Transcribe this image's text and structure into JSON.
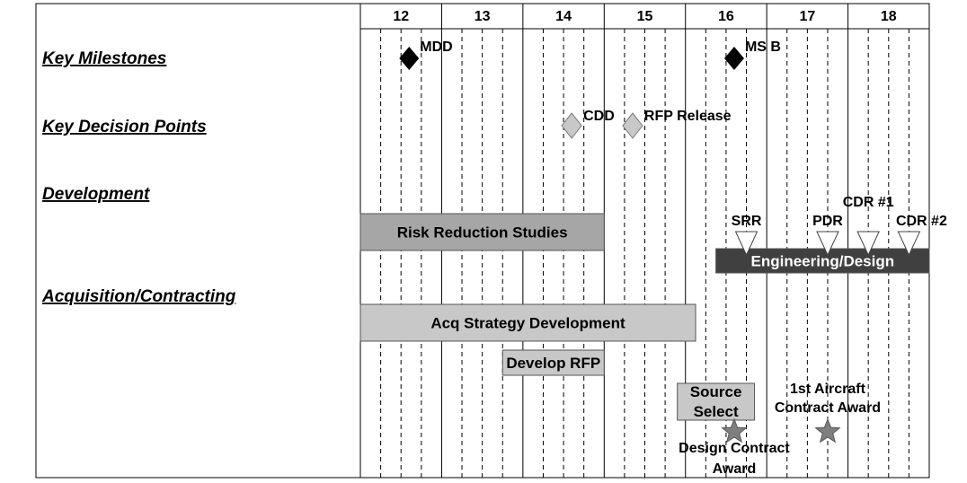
{
  "chart_data": {
    "type": "gantt",
    "years": [
      "12",
      "13",
      "14",
      "15",
      "16",
      "17",
      "18"
    ],
    "rows": [
      {
        "label": "Key Milestones"
      },
      {
        "label": "Key Decision Points"
      },
      {
        "label": "Development"
      },
      {
        "label": "Acquisition/Contracting"
      }
    ],
    "milestones": [
      {
        "label": "MDD",
        "x": 12.1,
        "style": "black-diamond"
      },
      {
        "label": "MS B",
        "x": 16.1,
        "style": "black-diamond"
      }
    ],
    "decision_points": [
      {
        "label": "CDD",
        "x": 14.1,
        "style": "gray-diamond"
      },
      {
        "label": "RFP Release",
        "x": 14.85,
        "style": "gray-diamond"
      }
    ],
    "bars": [
      {
        "label": "Risk Reduction Studies",
        "start": 11.5,
        "end": 14.5,
        "fill": "#a6a6a6",
        "text_color": "#000000"
      },
      {
        "label": "Engineering/Design",
        "start": 15.875,
        "end": 18.5,
        "fill": "#404040",
        "text_color": "#ffffff"
      },
      {
        "label": "Acq Strategy Development",
        "start": 11.5,
        "end": 15.625,
        "fill": "#c8c8c8",
        "text_color": "#000000"
      },
      {
        "label": "Develop RFP",
        "start": 13.25,
        "end": 14.5,
        "fill": "#c8c8c8",
        "text_color": "#000000"
      },
      {
        "label_lines": [
          "Source",
          "Select"
        ],
        "start": 15.4,
        "end": 16.35,
        "fill": "#c8c8c8",
        "text_color": "#000000"
      }
    ],
    "reviews": [
      {
        "label": "SRR",
        "x": 16.25
      },
      {
        "label": "PDR",
        "x": 17.25
      },
      {
        "label": "CDR #1",
        "x": 17.75
      },
      {
        "label": "CDR #2",
        "x": 18.25
      }
    ],
    "awards": [
      {
        "label_lines": [
          "Design Contract",
          "Award"
        ],
        "x": 16.1
      },
      {
        "label_lines": [
          "1st Aircraft",
          "Contract Award"
        ],
        "x": 17.25
      }
    ]
  }
}
